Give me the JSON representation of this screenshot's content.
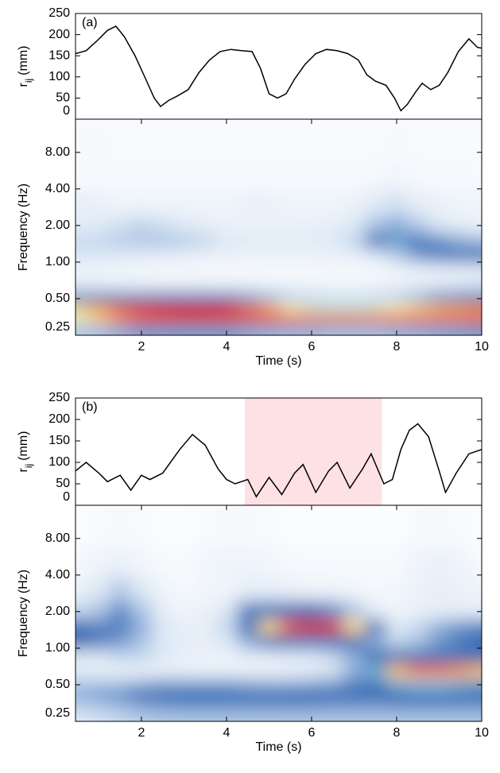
{
  "chart_data": [
    {
      "type": "line",
      "panel_label": "(a)",
      "color": "#000000",
      "ylabel": {
        "main": "r",
        "sub": "ij",
        "unit": "(mm)"
      },
      "xlim": [
        0.45,
        10
      ],
      "ylim": [
        0,
        250
      ],
      "yticks": [
        0,
        50,
        100,
        150,
        200,
        250
      ],
      "x": [
        0.45,
        0.7,
        0.95,
        1.2,
        1.4,
        1.6,
        1.85,
        2.1,
        2.3,
        2.45,
        2.65,
        2.85,
        3.1,
        3.35,
        3.6,
        3.85,
        4.1,
        4.35,
        4.6,
        4.8,
        5.0,
        5.2,
        5.4,
        5.6,
        5.85,
        6.1,
        6.35,
        6.6,
        6.85,
        7.1,
        7.3,
        7.5,
        7.75,
        7.95,
        8.1,
        8.25,
        8.45,
        8.6,
        8.8,
        9.0,
        9.2,
        9.45,
        9.7,
        9.9,
        10.0
      ],
      "values": [
        155,
        162,
        185,
        210,
        220,
        195,
        150,
        95,
        50,
        30,
        45,
        55,
        70,
        110,
        140,
        160,
        165,
        162,
        160,
        120,
        60,
        50,
        60,
        95,
        130,
        155,
        165,
        162,
        155,
        140,
        105,
        90,
        80,
        50,
        20,
        35,
        65,
        85,
        70,
        80,
        110,
        160,
        190,
        170,
        168
      ]
    },
    {
      "type": "heatmap",
      "xlabel": "Time (s)",
      "ylabel": "Frequency (Hz)",
      "log_y": true,
      "xlim": [
        0.45,
        10
      ],
      "ylim": [
        0.25,
        15
      ],
      "xticks": [
        2,
        4,
        6,
        8,
        10
      ],
      "yticks": [
        {
          "value": 0.25,
          "label": "0.25"
        },
        {
          "value": 0.5,
          "label": "0.50"
        },
        {
          "value": 1,
          "label": "1.00"
        },
        {
          "value": 2,
          "label": "2.00"
        },
        {
          "value": 4,
          "label": "4.00"
        },
        {
          "value": 8,
          "label": "8.00"
        }
      ],
      "x": [
        0.5,
        1,
        1.5,
        2,
        2.5,
        3,
        3.5,
        4,
        4.5,
        5,
        5.5,
        6,
        6.5,
        7,
        7.5,
        8,
        8.5,
        9,
        9.5,
        10
      ],
      "y": [
        0.28,
        0.35,
        0.42,
        0.5,
        0.65,
        0.85,
        1.15,
        1.5,
        2,
        3,
        5,
        9
      ],
      "z": [
        [
          0.3,
          0.32,
          0.35,
          0.38,
          0.38,
          0.38,
          0.38,
          0.38,
          0.36,
          0.35,
          0.34,
          0.34,
          0.33,
          0.33,
          0.33,
          0.34,
          0.35,
          0.36,
          0.37,
          0.38
        ],
        [
          0.7,
          0.78,
          0.85,
          0.9,
          0.93,
          0.95,
          0.95,
          0.94,
          0.92,
          0.9,
          0.88,
          0.87,
          0.86,
          0.86,
          0.86,
          0.87,
          0.88,
          0.88,
          0.88,
          0.88
        ],
        [
          0.75,
          0.8,
          0.85,
          0.88,
          0.9,
          0.92,
          0.92,
          0.9,
          0.85,
          0.8,
          0.72,
          0.68,
          0.66,
          0.66,
          0.68,
          0.72,
          0.75,
          0.78,
          0.8,
          0.82
        ],
        [
          0.5,
          0.5,
          0.5,
          0.5,
          0.48,
          0.48,
          0.46,
          0.44,
          0.4,
          0.35,
          0.28,
          0.25,
          0.22,
          0.22,
          0.24,
          0.28,
          0.35,
          0.42,
          0.48,
          0.52
        ],
        [
          0.15,
          0.15,
          0.14,
          0.13,
          0.12,
          0.12,
          0.12,
          0.12,
          0.12,
          0.1,
          0.1,
          0.1,
          0.1,
          0.1,
          0.1,
          0.12,
          0.15,
          0.18,
          0.2,
          0.22
        ],
        [
          0.1,
          0.1,
          0.08,
          0.08,
          0.06,
          0.06,
          0.05,
          0.05,
          0.05,
          0.05,
          0.05,
          0.05,
          0.05,
          0.05,
          0.05,
          0.08,
          0.1,
          0.12,
          0.12,
          0.12
        ],
        [
          0.2,
          0.2,
          0.18,
          0.16,
          0.15,
          0.15,
          0.12,
          0.12,
          0.12,
          0.12,
          0.12,
          0.12,
          0.12,
          0.14,
          0.2,
          0.28,
          0.38,
          0.42,
          0.44,
          0.45
        ],
        [
          0.25,
          0.25,
          0.28,
          0.3,
          0.3,
          0.28,
          0.25,
          0.2,
          0.18,
          0.18,
          0.18,
          0.18,
          0.2,
          0.25,
          0.45,
          0.58,
          0.52,
          0.4,
          0.35,
          0.32
        ],
        [
          0.15,
          0.18,
          0.22,
          0.25,
          0.22,
          0.18,
          0.15,
          0.12,
          0.12,
          0.12,
          0.12,
          0.12,
          0.15,
          0.2,
          0.3,
          0.35,
          0.28,
          0.2,
          0.15,
          0.12
        ],
        [
          0.15,
          0.12,
          0.1,
          0.1,
          0.1,
          0.1,
          0.1,
          0.1,
          0.12,
          0.12,
          0.1,
          0.1,
          0.1,
          0.12,
          0.18,
          0.22,
          0.15,
          0.12,
          0.1,
          0.1
        ],
        [
          0.05,
          0.05,
          0.05,
          0.05,
          0.05,
          0.05,
          0.05,
          0.05,
          0.05,
          0.05,
          0.05,
          0.05,
          0.05,
          0.05,
          0.06,
          0.08,
          0.06,
          0.05,
          0.05,
          0.05
        ],
        [
          0.05,
          0.05,
          0.04,
          0.04,
          0.04,
          0.04,
          0.04,
          0.04,
          0.04,
          0.04,
          0.04,
          0.04,
          0.04,
          0.04,
          0.04,
          0.05,
          0.04,
          0.04,
          0.04,
          0.04
        ]
      ]
    },
    {
      "type": "line",
      "panel_label": "(b)",
      "color": "#000000",
      "ylabel": {
        "main": "r",
        "sub": "ij",
        "unit": "(mm)"
      },
      "xlim": [
        0.45,
        10
      ],
      "ylim": [
        0,
        250
      ],
      "yticks": [
        0,
        50,
        100,
        150,
        200,
        250
      ],
      "highlight": {
        "x": [
          4.43,
          7.65
        ],
        "color": "#fde1e4"
      },
      "x": [
        0.45,
        0.7,
        1.0,
        1.2,
        1.5,
        1.75,
        2.0,
        2.2,
        2.5,
        2.9,
        3.2,
        3.5,
        3.8,
        4.0,
        4.2,
        4.5,
        4.7,
        5.0,
        5.3,
        5.6,
        5.8,
        6.1,
        6.4,
        6.6,
        6.9,
        7.2,
        7.4,
        7.7,
        7.9,
        8.1,
        8.3,
        8.5,
        8.75,
        9.0,
        9.15,
        9.4,
        9.7,
        10.0
      ],
      "values": [
        80,
        100,
        75,
        55,
        70,
        35,
        70,
        60,
        75,
        130,
        165,
        140,
        85,
        60,
        50,
        60,
        20,
        65,
        25,
        75,
        95,
        30,
        80,
        100,
        40,
        85,
        120,
        50,
        60,
        130,
        175,
        190,
        160,
        80,
        30,
        75,
        120,
        130
      ]
    },
    {
      "type": "heatmap",
      "xlabel": "Time (s)",
      "ylabel": "Frequency (Hz)",
      "log_y": true,
      "xlim": [
        0.45,
        10
      ],
      "ylim": [
        0.25,
        15
      ],
      "xticks": [
        2,
        4,
        6,
        8,
        10
      ],
      "yticks": [
        {
          "value": 0.25,
          "label": "0.25"
        },
        {
          "value": 0.5,
          "label": "0.50"
        },
        {
          "value": 1,
          "label": "1.00"
        },
        {
          "value": 2,
          "label": "2.00"
        },
        {
          "value": 4,
          "label": "4.00"
        },
        {
          "value": 8,
          "label": "8.00"
        }
      ],
      "x": [
        0.5,
        1,
        1.5,
        2,
        2.5,
        3,
        3.5,
        4,
        4.5,
        5,
        5.5,
        6,
        6.5,
        7,
        7.5,
        8,
        8.5,
        9,
        9.5,
        10
      ],
      "y": [
        0.28,
        0.35,
        0.42,
        0.5,
        0.65,
        0.85,
        1.15,
        1.5,
        2,
        3,
        5,
        9
      ],
      "z": [
        [
          0.2,
          0.22,
          0.25,
          0.28,
          0.3,
          0.3,
          0.3,
          0.3,
          0.3,
          0.3,
          0.3,
          0.3,
          0.3,
          0.3,
          0.3,
          0.3,
          0.3,
          0.3,
          0.3,
          0.3
        ],
        [
          0.3,
          0.32,
          0.35,
          0.38,
          0.4,
          0.42,
          0.42,
          0.42,
          0.42,
          0.42,
          0.42,
          0.42,
          0.4,
          0.4,
          0.4,
          0.42,
          0.42,
          0.42,
          0.42,
          0.42
        ],
        [
          0.35,
          0.38,
          0.4,
          0.45,
          0.48,
          0.5,
          0.5,
          0.5,
          0.5,
          0.48,
          0.46,
          0.45,
          0.45,
          0.45,
          0.45,
          0.46,
          0.48,
          0.48,
          0.48,
          0.48
        ],
        [
          0.3,
          0.3,
          0.32,
          0.35,
          0.38,
          0.38,
          0.38,
          0.38,
          0.36,
          0.35,
          0.35,
          0.36,
          0.38,
          0.42,
          0.5,
          0.6,
          0.62,
          0.62,
          0.6,
          0.58
        ],
        [
          0.15,
          0.12,
          0.1,
          0.1,
          0.1,
          0.1,
          0.1,
          0.1,
          0.1,
          0.1,
          0.12,
          0.15,
          0.2,
          0.35,
          0.6,
          0.78,
          0.85,
          0.85,
          0.82,
          0.78
        ],
        [
          0.2,
          0.2,
          0.25,
          0.25,
          0.2,
          0.15,
          0.12,
          0.12,
          0.15,
          0.15,
          0.18,
          0.2,
          0.25,
          0.35,
          0.45,
          0.5,
          0.5,
          0.5,
          0.48,
          0.45
        ],
        [
          0.45,
          0.42,
          0.38,
          0.3,
          0.2,
          0.15,
          0.15,
          0.2,
          0.35,
          0.45,
          0.5,
          0.55,
          0.55,
          0.48,
          0.35,
          0.25,
          0.3,
          0.38,
          0.42,
          0.45
        ],
        [
          0.45,
          0.42,
          0.42,
          0.35,
          0.2,
          0.15,
          0.15,
          0.25,
          0.5,
          0.75,
          0.88,
          0.95,
          0.92,
          0.75,
          0.45,
          0.2,
          0.25,
          0.35,
          0.4,
          0.42
        ],
        [
          0.25,
          0.3,
          0.4,
          0.3,
          0.15,
          0.1,
          0.12,
          0.2,
          0.42,
          0.55,
          0.5,
          0.45,
          0.4,
          0.3,
          0.15,
          0.1,
          0.12,
          0.15,
          0.15,
          0.15
        ],
        [
          0.12,
          0.2,
          0.28,
          0.2,
          0.1,
          0.06,
          0.08,
          0.1,
          0.15,
          0.15,
          0.12,
          0.1,
          0.1,
          0.08,
          0.06,
          0.08,
          0.12,
          0.15,
          0.12,
          0.1
        ],
        [
          0.06,
          0.1,
          0.12,
          0.08,
          0.05,
          0.05,
          0.08,
          0.1,
          0.1,
          0.08,
          0.06,
          0.05,
          0.05,
          0.05,
          0.05,
          0.05,
          0.1,
          0.12,
          0.1,
          0.05
        ],
        [
          0.03,
          0.04,
          0.05,
          0.04,
          0.03,
          0.03,
          0.04,
          0.05,
          0.05,
          0.04,
          0.03,
          0.03,
          0.03,
          0.03,
          0.03,
          0.03,
          0.05,
          0.05,
          0.04,
          0.03
        ]
      ]
    }
  ]
}
